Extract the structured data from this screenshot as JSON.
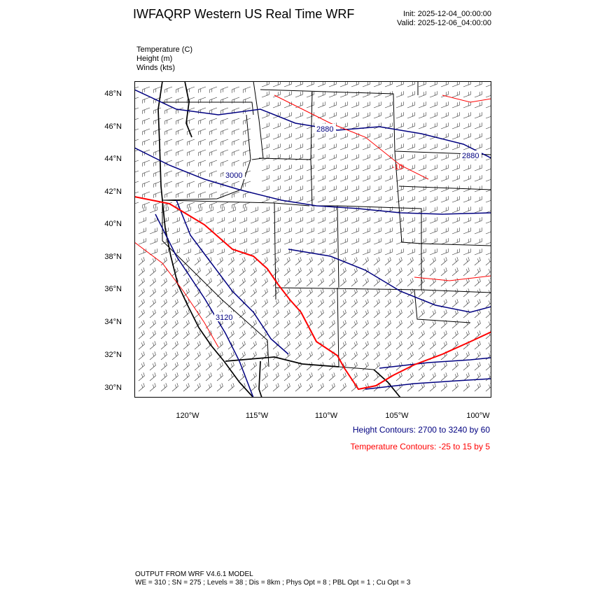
{
  "header": {
    "title": "IWFAQRP Western US Real Time WRF",
    "init": "Init: 2025-12-04_00:00:00",
    "valid": "Valid: 2025-12-06_04:00:00"
  },
  "variables": {
    "temperature": "Temperature   (C)",
    "height": "Height   (m)",
    "winds": "Winds   (kts)"
  },
  "axes": {
    "lat_labels": [
      "48°N",
      "46°N",
      "44°N",
      "42°N",
      "40°N",
      "38°N",
      "36°N",
      "34°N",
      "32°N",
      "30°N"
    ],
    "lon_labels": [
      "120°W",
      "115°W",
      "110°W",
      "105°W",
      "100°W"
    ]
  },
  "contour_labels": {
    "h1": "2880",
    "h2": "2880",
    "h3": "3000",
    "h4": "3120",
    "t1": "-10"
  },
  "legend": {
    "height": "Height Contours: 2700 to 3240 by 60",
    "temperature": "Temperature Contours: -25 to 15 by 5"
  },
  "colors": {
    "height": "#000080",
    "temperature": "#ff0000"
  },
  "footer": {
    "line1": "OUTPUT FROM WRF V4.6.1 MODEL",
    "line2": "WE = 310 ; SN = 275 ; Levels = 38 ; Dis = 8km ; Phys Opt = 8 ; PBL Opt = 1 ; Cu Opt = 3"
  }
}
